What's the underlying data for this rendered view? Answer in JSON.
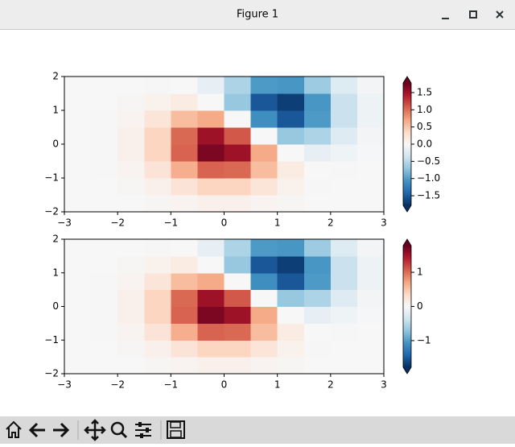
{
  "window": {
    "title": "Figure 1"
  },
  "chart_data": [
    {
      "type": "heatmap",
      "colormap": "RdBu_r",
      "xlim": [
        -3,
        3
      ],
      "ylim": [
        -2,
        2
      ],
      "clim": [
        -1.78,
        1.78
      ],
      "xticks": [
        {
          "value": -3,
          "label": "−3"
        },
        {
          "value": -2,
          "label": "−2"
        },
        {
          "value": -1,
          "label": "−1"
        },
        0,
        1,
        2,
        3
      ],
      "yticks": [
        {
          "value": -2,
          "label": "−2"
        },
        {
          "value": -1,
          "label": "−1"
        },
        0,
        1,
        2
      ],
      "colorbar_ticks": [
        {
          "value": -1.5,
          "label": "−1.5"
        },
        {
          "value": -1,
          "label": "−1.0"
        },
        {
          "value": -0.5,
          "label": "−0.5"
        },
        {
          "value": 0,
          "label": "0.0"
        },
        0.5,
        {
          "value": 1,
          "label": "1.0"
        },
        1.5
      ],
      "z": [
        [
          0,
          0,
          0,
          0.02,
          0.05,
          0.09,
          0.09,
          0.05,
          0.02,
          0,
          0,
          0
        ],
        [
          0,
          0,
          0.02,
          0.09,
          0.24,
          0.39,
          0.39,
          0.23,
          0.08,
          0.01,
          0,
          0
        ],
        [
          0,
          0.01,
          0.05,
          0.24,
          0.65,
          1.05,
          1.02,
          0.56,
          0.15,
          0,
          -0.01,
          0
        ],
        [
          0,
          0.01,
          0.09,
          0.39,
          1.05,
          1.68,
          1.52,
          0.68,
          0,
          -0.15,
          -0.08,
          -0.02
        ],
        [
          0,
          0.01,
          0.09,
          0.39,
          1.02,
          1.52,
          1.11,
          0,
          -0.68,
          -0.56,
          -0.23,
          -0.05
        ],
        [
          0,
          0.01,
          0.05,
          0.23,
          0.56,
          0.68,
          0,
          -1.11,
          -1.52,
          -1.02,
          -0.39,
          -0.09
        ],
        [
          0,
          0,
          0.02,
          0.08,
          0.15,
          0,
          -0.68,
          -1.52,
          -1.68,
          -1.05,
          -0.39,
          -0.09
        ],
        [
          0,
          0,
          0,
          0.01,
          0,
          -0.15,
          -0.56,
          -1.02,
          -1.05,
          -0.65,
          -0.24,
          -0.05
        ]
      ]
    },
    {
      "type": "heatmap",
      "colormap": "RdBu_r",
      "xlim": [
        -3,
        3
      ],
      "ylim": [
        -2,
        2
      ],
      "clim": [
        -1.78,
        1.78
      ],
      "xticks": [
        {
          "value": -3,
          "label": "−3"
        },
        {
          "value": -2,
          "label": "−2"
        },
        {
          "value": -1,
          "label": "−1"
        },
        0,
        1,
        2,
        3
      ],
      "yticks": [
        {
          "value": -2,
          "label": "−2"
        },
        {
          "value": -1,
          "label": "−1"
        },
        0,
        1,
        2
      ],
      "colorbar_ticks": [
        {
          "value": -1,
          "label": "−1"
        },
        0,
        1
      ],
      "z": [
        [
          0,
          0,
          0,
          0.02,
          0.05,
          0.09,
          0.09,
          0.05,
          0.02,
          0,
          0,
          0
        ],
        [
          0,
          0,
          0.02,
          0.09,
          0.24,
          0.39,
          0.39,
          0.23,
          0.08,
          0.01,
          0,
          0
        ],
        [
          0,
          0.01,
          0.05,
          0.24,
          0.65,
          1.05,
          1.02,
          0.56,
          0.15,
          0,
          -0.01,
          0
        ],
        [
          0,
          0.01,
          0.09,
          0.39,
          1.05,
          1.68,
          1.52,
          0.68,
          0,
          -0.15,
          -0.08,
          -0.02
        ],
        [
          0,
          0.01,
          0.09,
          0.39,
          1.02,
          1.52,
          1.11,
          0,
          -0.68,
          -0.56,
          -0.23,
          -0.05
        ],
        [
          0,
          0.01,
          0.05,
          0.23,
          0.56,
          0.68,
          0,
          -1.11,
          -1.52,
          -1.02,
          -0.39,
          -0.09
        ],
        [
          0,
          0,
          0.02,
          0.08,
          0.15,
          0,
          -0.68,
          -1.52,
          -1.68,
          -1.05,
          -0.39,
          -0.09
        ],
        [
          0,
          0,
          0,
          0.01,
          0,
          -0.15,
          -0.56,
          -1.02,
          -1.05,
          -0.65,
          -0.24,
          -0.05
        ]
      ]
    }
  ]
}
